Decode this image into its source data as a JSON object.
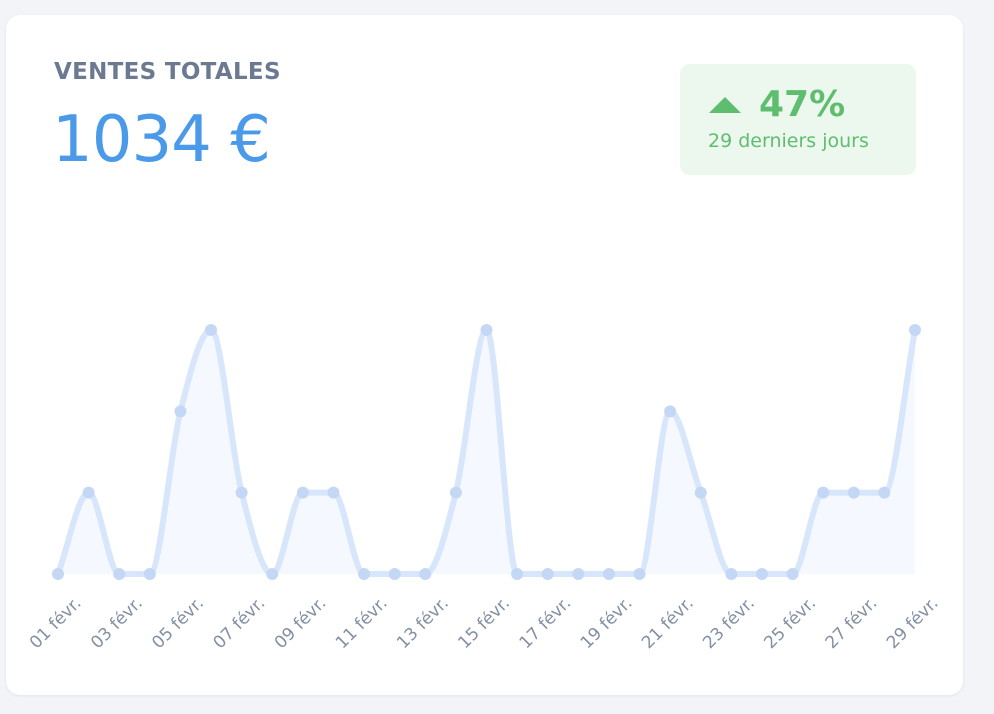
{
  "card": {
    "title": "VENTES TOTALES",
    "total": "1034 €"
  },
  "badge": {
    "icon": "triangle-up-icon",
    "percent": "47%",
    "period": "29 derniers jours",
    "color": "#5fbd6f",
    "background": "#ecf7ee"
  },
  "chart_data": {
    "type": "area",
    "x": [
      "01 févr.",
      "02 févr.",
      "03 févr.",
      "04 févr.",
      "05 févr.",
      "06 févr.",
      "07 févr.",
      "08 févr.",
      "09 févr.",
      "10 févr.",
      "11 févr.",
      "12 févr.",
      "13 févr.",
      "14 févr.",
      "15 févr.",
      "16 févr.",
      "17 févr.",
      "18 févr.",
      "19 févr.",
      "20 févr.",
      "21 févr.",
      "22 févr.",
      "23 févr.",
      "24 févr.",
      "25 févr.",
      "26 févr.",
      "27 févr.",
      "28 févr.",
      "29 févr."
    ],
    "tick_labels": [
      "01 févr.",
      "03 févr.",
      "05 févr.",
      "07 févr.",
      "09 févr.",
      "11 févr.",
      "13 févr.",
      "15 févr.",
      "17 févr.",
      "19 févr.",
      "21 févr.",
      "23 févr.",
      "25 févr.",
      "27 févr.",
      "29 févr."
    ],
    "series": [
      {
        "values": [
          0,
          1,
          0,
          0,
          2,
          3,
          1,
          0,
          1,
          1,
          0,
          0,
          0,
          1,
          3,
          0,
          0,
          0,
          0,
          0,
          2,
          1,
          0,
          0,
          0,
          1,
          1,
          1,
          3
        ]
      }
    ],
    "ylim": [
      0,
      3
    ],
    "line_color": "#d8e6fb",
    "point_color": "#c4d8f6",
    "fill_color": "#f5f9ff",
    "grid": false,
    "legend": false,
    "axes_visible": false
  }
}
